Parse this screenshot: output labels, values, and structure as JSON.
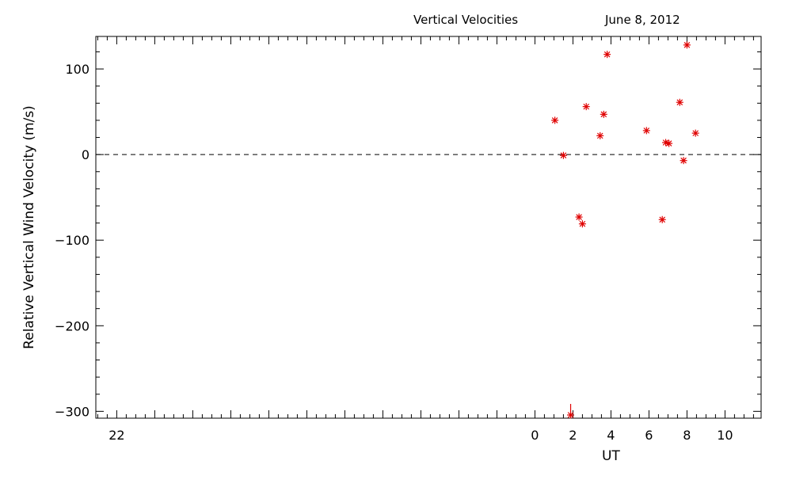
{
  "header": {
    "title": "Vertical Velocities",
    "date": "June 8, 2012"
  },
  "chart_data": {
    "type": "scatter",
    "title": "Vertical Velocities",
    "subtitle": "June 8, 2012",
    "xlabel": "UT",
    "ylabel": "Relative Vertical Wind Velocity (m/s)",
    "xlim": [
      -23.1,
      11.9
    ],
    "ylim": [
      -308,
      138
    ],
    "x_ticks": [
      -22,
      0,
      2,
      4,
      6,
      8,
      10
    ],
    "x_tick_labels": [
      "22",
      "0",
      "2",
      "4",
      "6",
      "8",
      "10"
    ],
    "y_ticks": [
      100,
      0,
      -100,
      -200,
      -300
    ],
    "y_tick_labels": [
      "100",
      "0",
      "−100",
      "−200",
      "−300"
    ],
    "reference_line": {
      "y": 0,
      "style": "dashed"
    },
    "marker": "asterisk",
    "color": "#e00000",
    "grid": false,
    "series": [
      {
        "points": [
          {
            "x": 1.05,
            "y": 40
          },
          {
            "x": 1.5,
            "y": -1
          },
          {
            "x": 2.32,
            "y": -73
          },
          {
            "x": 2.5,
            "y": -81
          },
          {
            "x": 2.7,
            "y": 56
          },
          {
            "x": 3.43,
            "y": 22
          },
          {
            "x": 3.62,
            "y": 47
          },
          {
            "x": 3.8,
            "y": 117
          },
          {
            "x": 5.87,
            "y": 28
          },
          {
            "x": 6.7,
            "y": -76
          },
          {
            "x": 6.88,
            "y": 14
          },
          {
            "x": 7.05,
            "y": 13
          },
          {
            "x": 7.62,
            "y": 61
          },
          {
            "x": 7.82,
            "y": -7
          },
          {
            "x": 8.0,
            "y": 128
          },
          {
            "x": 8.45,
            "y": 25
          }
        ]
      }
    ],
    "off_scale_markers": [
      {
        "x": 1.88,
        "y": -308,
        "direction": "down"
      }
    ]
  }
}
